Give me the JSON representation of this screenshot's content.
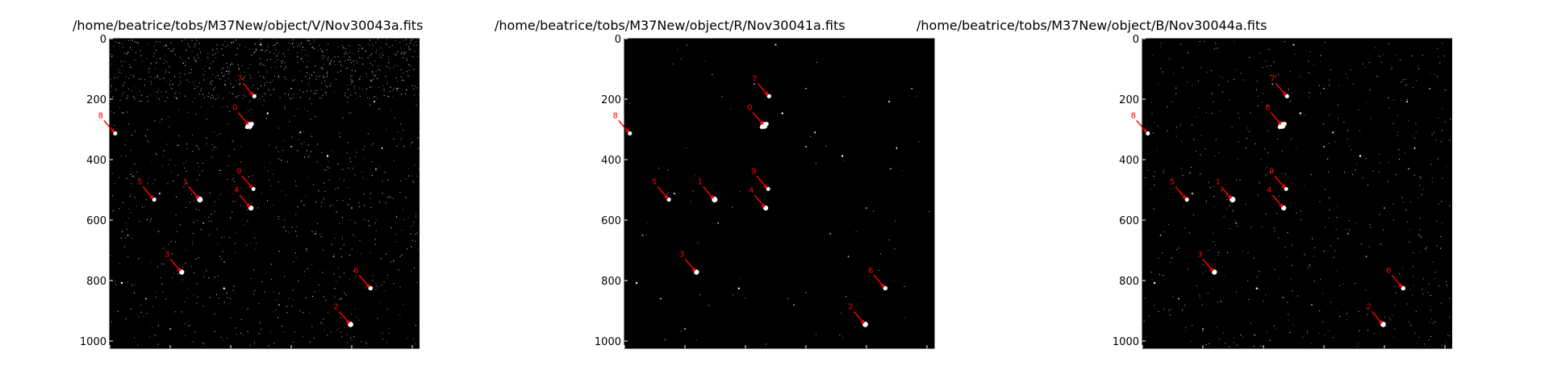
{
  "panels": [
    {
      "title": "/home/beatrice/tobs/M37New/object/V/Nov30043a.fits",
      "noise_level": "high",
      "band": "V"
    },
    {
      "title": "/home/beatrice/tobs/M37New/object/R/Nov30041a.fits",
      "noise_level": "low",
      "band": "R"
    },
    {
      "title": "/home/beatrice/tobs/M37New/object/B/Nov30044a.fits",
      "noise_level": "medium",
      "band": "B"
    }
  ],
  "chart_data": {
    "type": "scatter",
    "xlim": [
      0,
      1024
    ],
    "ylim": [
      1024,
      0
    ],
    "x_ticks": [
      "0",
      "200",
      "400",
      "600",
      "800",
      "1000"
    ],
    "y_ticks": [
      "0",
      "200",
      "400",
      "600",
      "800",
      "1000"
    ],
    "background_color": "#000000",
    "star_color": "#ffffff",
    "annotation_color": "#ff0000",
    "annotated_stars": [
      {
        "label": "0",
        "x": 462,
        "y": 287,
        "bright": 3.0
      },
      {
        "label": "1",
        "x": 298,
        "y": 532,
        "bright": 2.4
      },
      {
        "label": "2",
        "x": 796,
        "y": 945,
        "bright": 2.2
      },
      {
        "label": "3",
        "x": 238,
        "y": 772,
        "bright": 2.0
      },
      {
        "label": "4",
        "x": 467,
        "y": 560,
        "bright": 1.9
      },
      {
        "label": "5",
        "x": 147,
        "y": 532,
        "bright": 1.4
      },
      {
        "label": "6",
        "x": 862,
        "y": 825,
        "bright": 1.6
      },
      {
        "label": "7",
        "x": 478,
        "y": 190,
        "bright": 1.4
      },
      {
        "label": "8",
        "x": 18,
        "y": 313,
        "bright": 1.4
      },
      {
        "label": "9",
        "x": 475,
        "y": 497,
        "bright": 1.3
      }
    ],
    "field_stars": [
      {
        "x": 522,
        "y": 247,
        "b": 1.2
      },
      {
        "x": 720,
        "y": 388,
        "b": 1.2
      },
      {
        "x": 875,
        "y": 208,
        "b": 1.0
      },
      {
        "x": 900,
        "y": 362,
        "b": 1.0
      },
      {
        "x": 630,
        "y": 310,
        "b": 1.0
      },
      {
        "x": 600,
        "y": 357,
        "b": 0.9
      },
      {
        "x": 165,
        "y": 512,
        "b": 1.0
      },
      {
        "x": 40,
        "y": 808,
        "b": 1.2
      },
      {
        "x": 378,
        "y": 826,
        "b": 1.2
      },
      {
        "x": 200,
        "y": 960,
        "b": 0.9
      },
      {
        "x": 600,
        "y": 165,
        "b": 0.8
      },
      {
        "x": 950,
        "y": 165,
        "b": 0.8
      },
      {
        "x": 680,
        "y": 645,
        "b": 0.8
      },
      {
        "x": 800,
        "y": 560,
        "b": 0.8
      },
      {
        "x": 500,
        "y": 20,
        "b": 1.0
      },
      {
        "x": 880,
        "y": 430,
        "b": 0.8
      },
      {
        "x": 60,
        "y": 650,
        "b": 0.8
      },
      {
        "x": 560,
        "y": 880,
        "b": 0.8
      },
      {
        "x": 430,
        "y": 150,
        "b": 0.8
      },
      {
        "x": 310,
        "y": 610,
        "b": 0.8
      },
      {
        "x": 740,
        "y": 720,
        "b": 0.8
      },
      {
        "x": 120,
        "y": 860,
        "b": 0.9
      }
    ]
  }
}
